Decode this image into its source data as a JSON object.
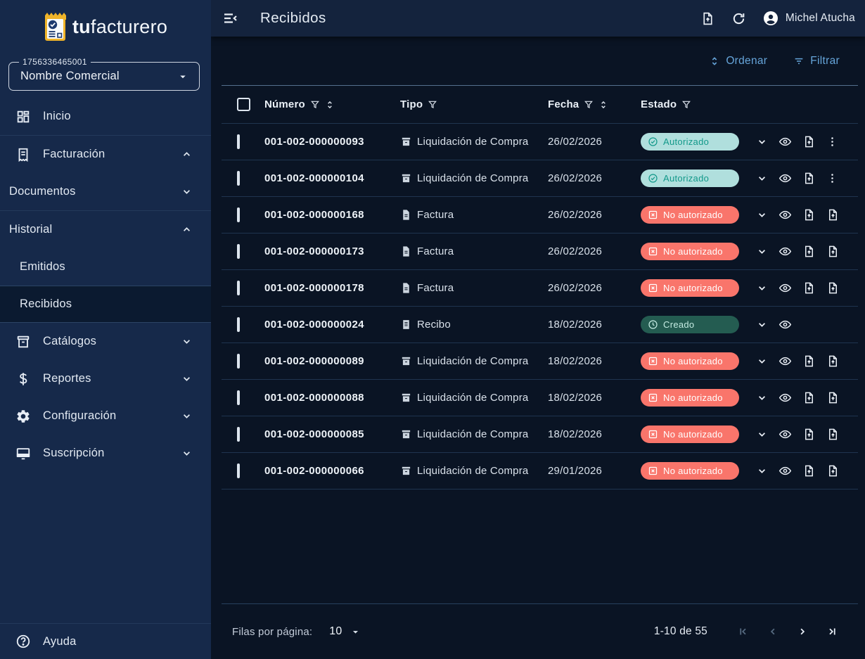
{
  "brand": {
    "prefix": "tu",
    "suffix": "facturero"
  },
  "company": {
    "tax_id": "1756336465001",
    "name": "Nombre Comercial"
  },
  "sidebar": {
    "items": [
      {
        "label": "Inicio",
        "icon": "dashboard",
        "chevron": null,
        "style": "icon",
        "active": false,
        "divider_after": true
      },
      {
        "label": "Facturación",
        "icon": "receipt",
        "chevron": "up",
        "style": "icon",
        "active": false,
        "divider_after": false
      },
      {
        "label": "Documentos",
        "icon": null,
        "chevron": "down",
        "style": "flush",
        "active": false,
        "divider_after": true
      },
      {
        "label": "Historial",
        "icon": null,
        "chevron": "up",
        "style": "flush",
        "active": false,
        "divider_after": false
      },
      {
        "label": "Emitidos",
        "icon": null,
        "chevron": null,
        "style": "sub",
        "active": false,
        "divider_after": false
      },
      {
        "label": "Recibidos",
        "icon": null,
        "chevron": null,
        "style": "sub",
        "active": true,
        "divider_after": false
      },
      {
        "label": "Catálogos",
        "icon": "archive",
        "chevron": "down",
        "style": "icon",
        "active": false,
        "divider_after": false
      },
      {
        "label": "Reportes",
        "icon": "dollar",
        "chevron": "down",
        "style": "icon",
        "active": false,
        "divider_after": false
      },
      {
        "label": "Configuración",
        "icon": "gear",
        "chevron": "down",
        "style": "icon",
        "active": false,
        "divider_after": false
      },
      {
        "label": "Suscripción",
        "icon": "monitor",
        "chevron": "down",
        "style": "icon",
        "active": false,
        "divider_after": false
      }
    ],
    "help_label": "Ayuda"
  },
  "header": {
    "title": "Recibidos",
    "user_name": "Michel Atucha"
  },
  "toolbar": {
    "sort_label": "Ordenar",
    "filter_label": "Filtrar"
  },
  "table": {
    "headers": {
      "numero": "Número",
      "tipo": "Tipo",
      "fecha": "Fecha",
      "estado": "Estado"
    },
    "rows": [
      {
        "numero": "001-002-000000093",
        "tipo": "Liquidación de Compra",
        "tipo_icon": "doc-archive",
        "fecha": "26/02/2026",
        "estado": "Autorizado",
        "estado_kind": "autorizado",
        "estado_icon": "check-circle",
        "actions": [
          "chevron-down",
          "eye",
          "file-export",
          "kebab-menu"
        ]
      },
      {
        "numero": "001-002-000000104",
        "tipo": "Liquidación de Compra",
        "tipo_icon": "doc-archive",
        "fecha": "26/02/2026",
        "estado": "Autorizado",
        "estado_kind": "autorizado",
        "estado_icon": "check-circle",
        "actions": [
          "chevron-down",
          "eye",
          "file-export",
          "kebab-menu"
        ]
      },
      {
        "numero": "001-002-000000168",
        "tipo": "Factura",
        "tipo_icon": "doc-file",
        "fecha": "26/02/2026",
        "estado": "No autorizado",
        "estado_kind": "no-autorizado",
        "estado_icon": "x-square",
        "actions": [
          "chevron-down",
          "eye",
          "file-export",
          "file-export"
        ]
      },
      {
        "numero": "001-002-000000173",
        "tipo": "Factura",
        "tipo_icon": "doc-file",
        "fecha": "26/02/2026",
        "estado": "No autorizado",
        "estado_kind": "no-autorizado",
        "estado_icon": "x-square",
        "actions": [
          "chevron-down",
          "eye",
          "file-export",
          "file-export"
        ]
      },
      {
        "numero": "001-002-000000178",
        "tipo": "Factura",
        "tipo_icon": "doc-file",
        "fecha": "26/02/2026",
        "estado": "No autorizado",
        "estado_kind": "no-autorizado",
        "estado_icon": "x-square",
        "actions": [
          "chevron-down",
          "eye",
          "file-export",
          "file-export"
        ]
      },
      {
        "numero": "001-002-000000024",
        "tipo": "Recibo",
        "tipo_icon": "doc-receipt",
        "fecha": "18/02/2026",
        "estado": "Creado",
        "estado_kind": "creado",
        "estado_icon": "clock",
        "actions": [
          "chevron-down",
          "eye"
        ]
      },
      {
        "numero": "001-002-000000089",
        "tipo": "Liquidación de Compra",
        "tipo_icon": "doc-archive",
        "fecha": "18/02/2026",
        "estado": "No autorizado",
        "estado_kind": "no-autorizado",
        "estado_icon": "x-square",
        "actions": [
          "chevron-down",
          "eye",
          "file-export",
          "file-export"
        ]
      },
      {
        "numero": "001-002-000000088",
        "tipo": "Liquidación de Compra",
        "tipo_icon": "doc-archive",
        "fecha": "18/02/2026",
        "estado": "No autorizado",
        "estado_kind": "no-autorizado",
        "estado_icon": "x-square",
        "actions": [
          "chevron-down",
          "eye",
          "file-export",
          "file-export"
        ]
      },
      {
        "numero": "001-002-000000085",
        "tipo": "Liquidación de Compra",
        "tipo_icon": "doc-archive",
        "fecha": "18/02/2026",
        "estado": "No autorizado",
        "estado_kind": "no-autorizado",
        "estado_icon": "x-square",
        "actions": [
          "chevron-down",
          "eye",
          "file-export",
          "file-export"
        ]
      },
      {
        "numero": "001-002-000000066",
        "tipo": "Liquidación de Compra",
        "tipo_icon": "doc-archive",
        "fecha": "29/01/2026",
        "estado": "No autorizado",
        "estado_kind": "no-autorizado",
        "estado_icon": "x-square",
        "actions": [
          "chevron-down",
          "eye",
          "file-export",
          "file-export"
        ]
      }
    ]
  },
  "footer": {
    "rows_per_page_label": "Filas por página:",
    "rows_per_page_value": "10",
    "range_label": "1-10 de 55"
  },
  "colors": {
    "sidebar_bg": "#16294a",
    "topbar_bg": "#14233d",
    "content_bg": "#0a1424",
    "accent_blue": "#66a5da",
    "badge_autorizado_bg": "#b0dfdd",
    "badge_autorizado_text": "#12998a",
    "badge_no_autorizado_bg": "#f9756b",
    "badge_no_autorizado_text": "#ffffff",
    "badge_creado_bg": "#245c51",
    "badge_creado_text": "#c4ebe2",
    "logo_accent": "#f0b429"
  }
}
